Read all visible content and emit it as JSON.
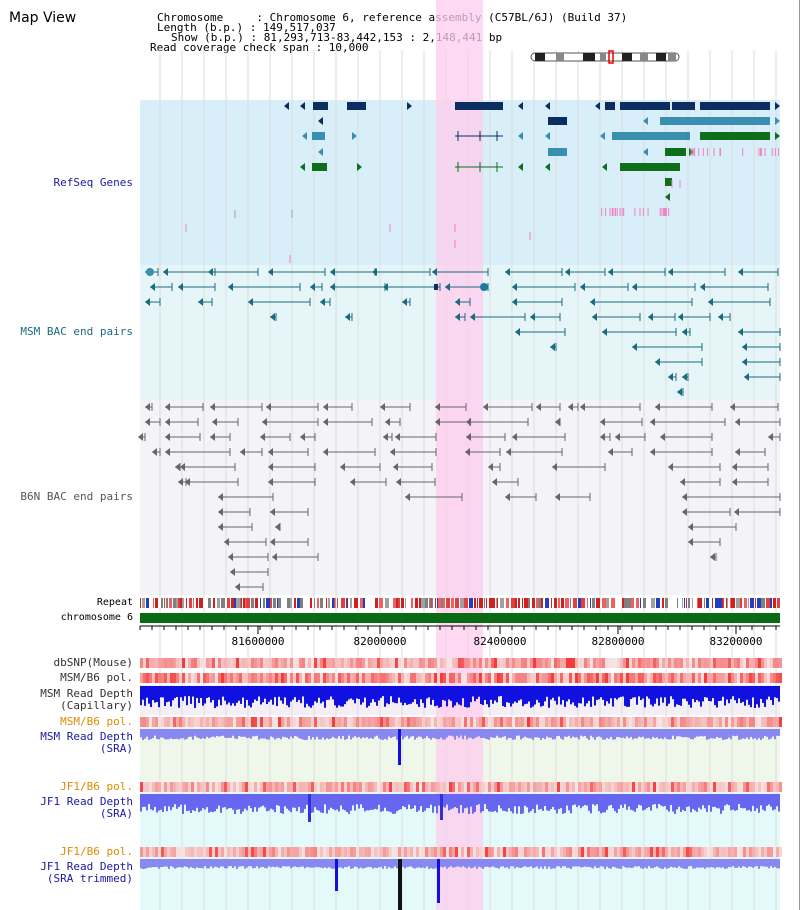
{
  "header": {
    "title": "Map View",
    "line1": "Chromosome     : Chromosome 6, reference assembly (C57BL/6J) (Build 37)",
    "line2": "Length (b.p.) : 149,517,037",
    "line3": "Show (b.p.) : 81,293,713-83,442,153 : 2,148,441 bp",
    "line4": "Read coverage check span : 10,000"
  },
  "tracks": {
    "refseq": "RefSeq Genes",
    "msm_bac": "MSM BAC end pairs",
    "b6n_bac": "B6N BAC end pairs",
    "repeat": "Repeat",
    "chromosome": "chromosome 6",
    "dbsnp": "dbSNP(Mouse)",
    "msm_pol": "MSM/B6 pol.",
    "msm_depth_cap_1": "MSM Read Depth",
    "msm_depth_cap_2": "(Capillary)",
    "msm_pol2": "MSM/B6 pol.",
    "msm_depth_sra_1": "MSM Read Depth",
    "msm_depth_sra_2": "(SRA)",
    "jf1_pol": "JF1/B6 pol.",
    "jf1_depth_1": "JF1 Read Depth",
    "jf1_depth_2": "(SRA)",
    "jf1_pol2": "JF1/B6 pol.",
    "jf1_trim_1": "JF1 Read Depth",
    "jf1_trim_2": "(SRA trimmed)"
  },
  "axis": {
    "ticks": [
      "81600000",
      "82000000",
      "82400000",
      "82800000",
      "83200000"
    ]
  },
  "colors": {
    "refseq_label": "#1a1aa0",
    "msm_label": "#1a6a80",
    "b6n_label": "#555555",
    "orange_label": "#e08a00",
    "blue_label": "#1a1aa0",
    "highlight": "#ffccee"
  }
}
